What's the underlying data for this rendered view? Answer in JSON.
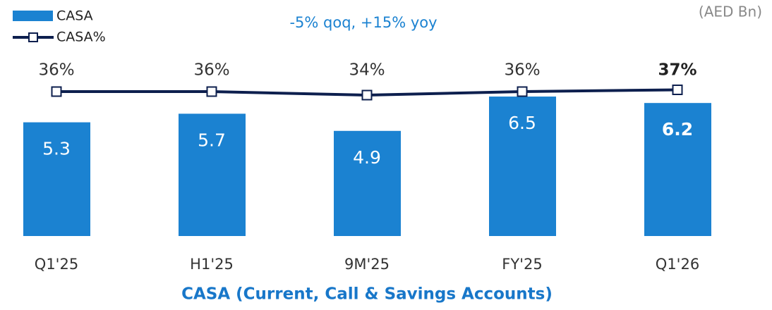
{
  "chart_data": {
    "type": "bar",
    "title": "CASA (Current, Call & Savings Accounts)",
    "annotation": "-5% qoq, +15% yoy",
    "unit_label": "(AED Bn)",
    "categories": [
      "Q1'25",
      "H1'25",
      "9M'25",
      "FY'25",
      "Q1'26"
    ],
    "series": [
      {
        "name": "CASA",
        "color": "#1b82d1",
        "values": [
          5.3,
          5.7,
          4.9,
          6.5,
          6.2
        ]
      },
      {
        "name": "CASA%",
        "color": "#0d1f4e",
        "type": "line",
        "axis": "y2",
        "values": [
          36,
          36,
          34,
          36,
          37
        ],
        "value_labels": [
          "36%",
          "36%",
          "34%",
          "36%",
          "37%"
        ]
      }
    ],
    "ylim": [
      0,
      11
    ],
    "y2lim": [
      24,
      48
    ],
    "highlight_index": 4,
    "legend": "top-left"
  }
}
